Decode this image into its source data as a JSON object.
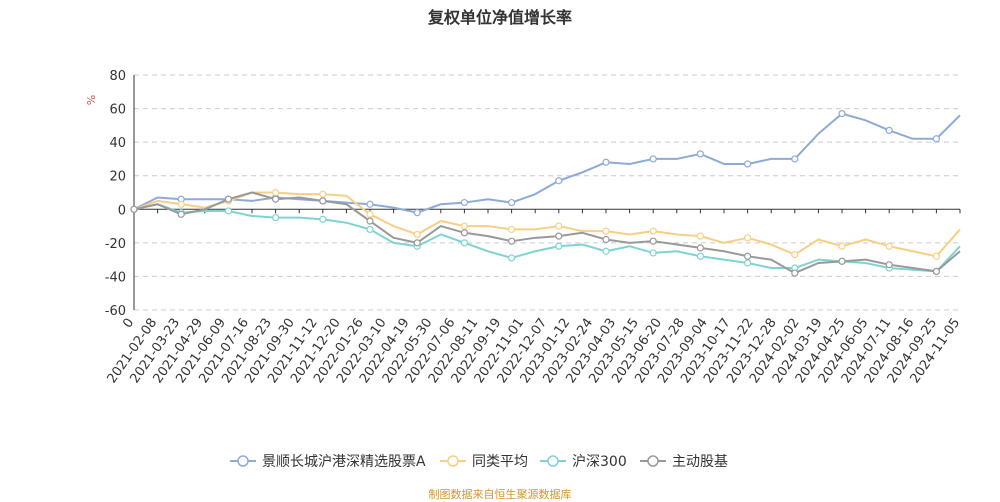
{
  "chart_data": {
    "type": "line",
    "title": "复权单位净值增长率",
    "ylabel": "%",
    "ylim": [
      -60,
      80
    ],
    "yticks": [
      -60,
      -40,
      -20,
      0,
      20,
      40,
      60,
      80
    ],
    "zero_label": "0",
    "x_dates": [
      "2021-02-08",
      "2021-03-23",
      "2021-04-29",
      "2021-06-09",
      "2021-07-16",
      "2021-08-23",
      "2021-09-30",
      "2021-11-12",
      "2021-12-20",
      "2022-01-26",
      "2022-03-10",
      "2022-04-19",
      "2022-05-30",
      "2022-07-06",
      "2022-08-11",
      "2022-09-19",
      "2022-11-01",
      "2022-12-07",
      "2023-01-12",
      "2023-02-24",
      "2023-04-03",
      "2023-05-15",
      "2023-06-20",
      "2023-07-28",
      "2023-09-04",
      "2023-10-17",
      "2023-11-22",
      "2023-12-28",
      "2024-02-02",
      "2024-03-19",
      "2024-04-25",
      "2024-06-05",
      "2024-07-11",
      "2024-08-16",
      "2024-09-25",
      "2024-11-05"
    ],
    "grid": true,
    "legend_position": "bottom",
    "series": [
      {
        "name": "景顺长城沪港深精选股票A",
        "color": "#8eaad9",
        "values": [
          0,
          7,
          6,
          6,
          6,
          5,
          7,
          6,
          5,
          4,
          3,
          1,
          -2,
          3,
          4,
          6,
          4,
          9,
          17,
          22,
          28,
          27,
          30,
          30,
          33,
          27,
          27,
          30,
          30,
          45,
          57,
          53,
          47,
          42,
          42,
          56
        ]
      },
      {
        "name": "同类平均",
        "color": "#f7cf84",
        "values": [
          0,
          5,
          3,
          1,
          5,
          10,
          10,
          9,
          9,
          8,
          -3,
          -10,
          -15,
          -7,
          -10,
          -10,
          -12,
          -12,
          -10,
          -13,
          -13,
          -15,
          -13,
          -15,
          -16,
          -20,
          -17,
          -21,
          -27,
          -18,
          -22,
          -18,
          -22,
          -25,
          -28,
          -12
        ]
      },
      {
        "name": "沪深300",
        "color": "#7fd3d3",
        "values": [
          0,
          3,
          -2,
          -1,
          -1,
          -4,
          -5,
          -5,
          -6,
          -8,
          -12,
          -20,
          -22,
          -15,
          -20,
          -25,
          -29,
          -25,
          -22,
          -21,
          -25,
          -22,
          -26,
          -25,
          -28,
          -30,
          -32,
          -35,
          -35,
          -30,
          -31,
          -32,
          -35,
          -36,
          -37,
          -22
        ]
      },
      {
        "name": "主动股基",
        "color": "#999999",
        "values": [
          0,
          3,
          -3,
          0,
          6,
          10,
          6,
          7,
          5,
          3,
          -7,
          -17,
          -20,
          -10,
          -14,
          -16,
          -19,
          -17,
          -16,
          -14,
          -18,
          -20,
          -19,
          -21,
          -23,
          -25,
          -28,
          -30,
          -38,
          -32,
          -31,
          -30,
          -33,
          -35,
          -37,
          -25
        ]
      }
    ]
  },
  "source_text": "制图数据来自恒生聚源数据库"
}
